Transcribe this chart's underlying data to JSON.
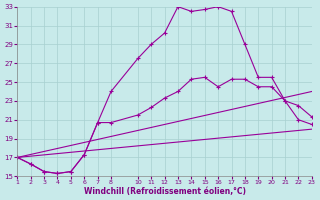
{
  "xlabel": "Windchill (Refroidissement éolien,°C)",
  "bg_color": "#c8eaea",
  "grid_color": "#a8d0d0",
  "line_color": "#990099",
  "xlim": [
    1,
    23
  ],
  "ylim": [
    15,
    33
  ],
  "yticks": [
    15,
    17,
    19,
    21,
    23,
    25,
    27,
    29,
    31,
    33
  ],
  "xticks": [
    1,
    2,
    3,
    4,
    5,
    6,
    7,
    8,
    10,
    11,
    12,
    13,
    14,
    15,
    16,
    17,
    18,
    19,
    20,
    21,
    22,
    23
  ],
  "series": [
    {
      "x": [
        1,
        2,
        3,
        4,
        5,
        6,
        7,
        8,
        10,
        11,
        12,
        13,
        14,
        15,
        16,
        17,
        18,
        19,
        20,
        21,
        22,
        23
      ],
      "y": [
        17.0,
        16.3,
        15.5,
        15.3,
        15.5,
        17.3,
        20.7,
        24.0,
        27.5,
        29.0,
        30.2,
        33.0,
        32.5,
        32.7,
        33.0,
        32.5,
        29.0,
        25.5,
        25.5,
        23.0,
        21.0,
        20.5
      ],
      "marker": true
    },
    {
      "x": [
        1,
        2,
        3,
        4,
        5,
        6,
        7,
        8,
        10,
        11,
        12,
        13,
        14,
        15,
        16,
        17,
        18,
        19,
        20,
        21,
        22,
        23
      ],
      "y": [
        17.0,
        16.3,
        15.5,
        15.3,
        15.5,
        17.3,
        20.7,
        20.7,
        21.5,
        22.3,
        23.3,
        24.0,
        25.3,
        25.5,
        24.5,
        25.3,
        25.3,
        24.5,
        24.5,
        23.0,
        22.5,
        21.3
      ],
      "marker": true
    },
    {
      "x": [
        1,
        23
      ],
      "y": [
        17.0,
        20.0
      ],
      "marker": false
    },
    {
      "x": [
        1,
        23
      ],
      "y": [
        17.0,
        24.0
      ],
      "marker": false
    }
  ]
}
